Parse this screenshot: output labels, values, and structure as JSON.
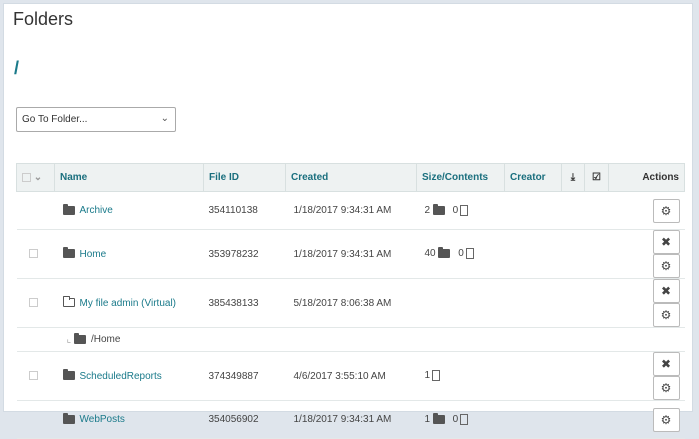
{
  "title": "Folders",
  "path": "/",
  "goto": {
    "value": "Go To Folder..."
  },
  "columns": {
    "name": "Name",
    "file_id": "File ID",
    "created": "Created",
    "size": "Size/Contents",
    "creator": "Creator",
    "actions": "Actions"
  },
  "rows": [
    {
      "name": "Archive",
      "file_id": "354110138",
      "created": "1/18/2017 9:34:31 AM",
      "folders": "2",
      "files": "0",
      "checkbox": false,
      "delete": false,
      "icon": "folder-shared-icon"
    },
    {
      "name": "Home",
      "file_id": "353978232",
      "created": "1/18/2017 9:34:31 AM",
      "folders": "40",
      "files": "0",
      "checkbox": true,
      "delete": true,
      "icon": "folder-icon"
    },
    {
      "name": "My file admin (Virtual)",
      "file_id": "385438133",
      "created": "5/18/2017 8:06:38 AM",
      "checkbox": true,
      "delete": true,
      "icon": "folder-open-icon",
      "sub": "/Home"
    },
    {
      "name": "ScheduledReports",
      "file_id": "374349887",
      "created": "4/6/2017 3:55:10 AM",
      "files": "1",
      "checkbox": true,
      "delete": true,
      "icon": "folder-icon"
    },
    {
      "name": "WebPosts",
      "file_id": "354056902",
      "created": "1/18/2017 9:34:31 AM",
      "folders": "1",
      "files": "0",
      "checkbox": false,
      "delete": false,
      "icon": "folder-shared-icon"
    }
  ],
  "accent": "#1a7a8a"
}
